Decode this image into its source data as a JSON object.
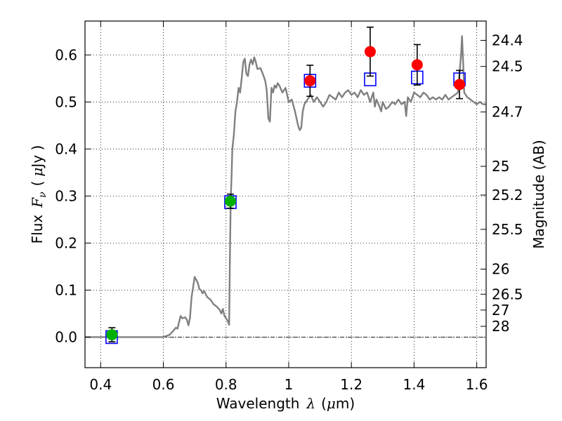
{
  "chart_data": {
    "type": "scatter",
    "xlabel": {
      "prefix": "Wavelength",
      "symbol": "λ",
      "unit_open": "(",
      "unit_mu": "μ",
      "unit_rest": "m)"
    },
    "ylabel": {
      "prefix": "Flux",
      "symbol": "F",
      "sub": "ν",
      "unit_open": "(",
      "unit_mu": "μ",
      "unit_rest": "Jy )"
    },
    "y2label": "Magnitude (AB)",
    "xlim": [
      0.35,
      1.63
    ],
    "ylim": [
      -0.065,
      0.672
    ],
    "xticks": [
      {
        "value": 0.4,
        "label": "0.4"
      },
      {
        "value": 0.6,
        "label": "0.6"
      },
      {
        "value": 0.8,
        "label": "0.8"
      },
      {
        "value": 1.0,
        "label": "1"
      },
      {
        "value": 1.2,
        "label": "1.2"
      },
      {
        "value": 1.4,
        "label": "1.4"
      },
      {
        "value": 1.6,
        "label": "1.6"
      }
    ],
    "yticks": [
      {
        "value": 0.0,
        "label": "0.0"
      },
      {
        "value": 0.1,
        "label": "0.1"
      },
      {
        "value": 0.2,
        "label": "0.2"
      },
      {
        "value": 0.3,
        "label": "0.3"
      },
      {
        "value": 0.4,
        "label": "0.4"
      },
      {
        "value": 0.5,
        "label": "0.5"
      },
      {
        "value": 0.6,
        "label": "0.6"
      }
    ],
    "magticks": [
      {
        "mag": 24.4,
        "label": "24.4"
      },
      {
        "mag": 24.5,
        "label": "24.5"
      },
      {
        "mag": 24.7,
        "label": "24.7"
      },
      {
        "mag": 25.0,
        "label": "25"
      },
      {
        "mag": 25.2,
        "label": "25.2"
      },
      {
        "mag": 25.5,
        "label": "25.5"
      },
      {
        "mag": 26.0,
        "label": "26"
      },
      {
        "mag": 26.5,
        "label": "26.5"
      },
      {
        "mag": 27.0,
        "label": "27"
      },
      {
        "mag": 28.0,
        "label": "28"
      }
    ],
    "grid": true,
    "sed_color": "#808080",
    "sed": [
      [
        0.35,
        0.0
      ],
      [
        0.6,
        0.0
      ],
      [
        0.62,
        0.005
      ],
      [
        0.63,
        0.012
      ],
      [
        0.64,
        0.02
      ],
      [
        0.645,
        0.018
      ],
      [
        0.655,
        0.045
      ],
      [
        0.66,
        0.04
      ],
      [
        0.67,
        0.042
      ],
      [
        0.675,
        0.037
      ],
      [
        0.68,
        0.025
      ],
      [
        0.685,
        0.04
      ],
      [
        0.69,
        0.085
      ],
      [
        0.7,
        0.128
      ],
      [
        0.71,
        0.115
      ],
      [
        0.715,
        0.102
      ],
      [
        0.72,
        0.1
      ],
      [
        0.725,
        0.093
      ],
      [
        0.73,
        0.098
      ],
      [
        0.74,
        0.085
      ],
      [
        0.75,
        0.08
      ],
      [
        0.76,
        0.07
      ],
      [
        0.77,
        0.065
      ],
      [
        0.78,
        0.058
      ],
      [
        0.785,
        0.05
      ],
      [
        0.79,
        0.06
      ],
      [
        0.795,
        0.045
      ],
      [
        0.8,
        0.04
      ],
      [
        0.805,
        0.035
      ],
      [
        0.81,
        0.026
      ],
      [
        0.812,
        0.15
      ],
      [
        0.815,
        0.29
      ],
      [
        0.818,
        0.35
      ],
      [
        0.82,
        0.4
      ],
      [
        0.825,
        0.43
      ],
      [
        0.83,
        0.48
      ],
      [
        0.835,
        0.5
      ],
      [
        0.84,
        0.53
      ],
      [
        0.845,
        0.52
      ],
      [
        0.85,
        0.55
      ],
      [
        0.855,
        0.585
      ],
      [
        0.86,
        0.592
      ],
      [
        0.865,
        0.56
      ],
      [
        0.87,
        0.555
      ],
      [
        0.875,
        0.58
      ],
      [
        0.88,
        0.59
      ],
      [
        0.885,
        0.58
      ],
      [
        0.89,
        0.595
      ],
      [
        0.895,
        0.585
      ],
      [
        0.9,
        0.57
      ],
      [
        0.91,
        0.572
      ],
      [
        0.92,
        0.555
      ],
      [
        0.925,
        0.545
      ],
      [
        0.93,
        0.525
      ],
      [
        0.935,
        0.465
      ],
      [
        0.94,
        0.458
      ],
      [
        0.945,
        0.53
      ],
      [
        0.95,
        0.52
      ],
      [
        0.955,
        0.535
      ],
      [
        0.96,
        0.53
      ],
      [
        0.965,
        0.54
      ],
      [
        0.97,
        0.535
      ],
      [
        0.98,
        0.52
      ],
      [
        0.99,
        0.53
      ],
      [
        1.0,
        0.5
      ],
      [
        1.01,
        0.505
      ],
      [
        1.02,
        0.48
      ],
      [
        1.03,
        0.45
      ],
      [
        1.035,
        0.44
      ],
      [
        1.04,
        0.445
      ],
      [
        1.045,
        0.48
      ],
      [
        1.05,
        0.495
      ],
      [
        1.06,
        0.505
      ],
      [
        1.07,
        0.515
      ],
      [
        1.08,
        0.5
      ],
      [
        1.09,
        0.51
      ],
      [
        1.1,
        0.5
      ],
      [
        1.11,
        0.49
      ],
      [
        1.12,
        0.5
      ],
      [
        1.13,
        0.515
      ],
      [
        1.14,
        0.51
      ],
      [
        1.15,
        0.505
      ],
      [
        1.16,
        0.52
      ],
      [
        1.17,
        0.51
      ],
      [
        1.18,
        0.52
      ],
      [
        1.19,
        0.525
      ],
      [
        1.2,
        0.515
      ],
      [
        1.21,
        0.52
      ],
      [
        1.22,
        0.51
      ],
      [
        1.23,
        0.525
      ],
      [
        1.24,
        0.515
      ],
      [
        1.25,
        0.52
      ],
      [
        1.26,
        0.5
      ],
      [
        1.27,
        0.52
      ],
      [
        1.275,
        0.49
      ],
      [
        1.28,
        0.505
      ],
      [
        1.29,
        0.49
      ],
      [
        1.295,
        0.48
      ],
      [
        1.3,
        0.5
      ],
      [
        1.31,
        0.485
      ],
      [
        1.32,
        0.49
      ],
      [
        1.33,
        0.5
      ],
      [
        1.34,
        0.495
      ],
      [
        1.35,
        0.505
      ],
      [
        1.36,
        0.495
      ],
      [
        1.37,
        0.5
      ],
      [
        1.375,
        0.47
      ],
      [
        1.38,
        0.51
      ],
      [
        1.39,
        0.5
      ],
      [
        1.4,
        0.52
      ],
      [
        1.41,
        0.515
      ],
      [
        1.42,
        0.51
      ],
      [
        1.43,
        0.52
      ],
      [
        1.44,
        0.515
      ],
      [
        1.45,
        0.505
      ],
      [
        1.46,
        0.51
      ],
      [
        1.47,
        0.505
      ],
      [
        1.48,
        0.51
      ],
      [
        1.49,
        0.505
      ],
      [
        1.5,
        0.515
      ],
      [
        1.51,
        0.505
      ],
      [
        1.52,
        0.51
      ],
      [
        1.53,
        0.515
      ],
      [
        1.54,
        0.52
      ],
      [
        1.545,
        0.56
      ],
      [
        1.55,
        0.6
      ],
      [
        1.553,
        0.64
      ],
      [
        1.557,
        0.58
      ],
      [
        1.56,
        0.52
      ],
      [
        1.57,
        0.51
      ],
      [
        1.58,
        0.505
      ],
      [
        1.59,
        0.5
      ],
      [
        1.6,
        0.495
      ],
      [
        1.61,
        0.5
      ],
      [
        1.62,
        0.495
      ],
      [
        1.63,
        0.495
      ]
    ],
    "model_points": {
      "marker": "open-square",
      "color": "#0000ff",
      "points": [
        {
          "x": 0.435,
          "y": 0.0
        },
        {
          "x": 0.814,
          "y": 0.287
        },
        {
          "x": 1.068,
          "y": 0.545
        },
        {
          "x": 1.26,
          "y": 0.548
        },
        {
          "x": 1.41,
          "y": 0.552
        },
        {
          "x": 1.545,
          "y": 0.548
        }
      ]
    },
    "observed_points": [
      {
        "x": 0.436,
        "y": 0.005,
        "err": 0.015,
        "color": "#00b000"
      },
      {
        "x": 0.814,
        "y": 0.289,
        "err": 0.015,
        "color": "#00b000"
      },
      {
        "x": 1.068,
        "y": 0.545,
        "err": 0.033,
        "color": "#ff0000"
      },
      {
        "x": 1.26,
        "y": 0.607,
        "err": 0.052,
        "color": "#ff0000"
      },
      {
        "x": 1.41,
        "y": 0.579,
        "err": 0.043,
        "color": "#ff0000"
      },
      {
        "x": 1.545,
        "y": 0.537,
        "err": 0.03,
        "color": "#ff0000"
      }
    ]
  }
}
